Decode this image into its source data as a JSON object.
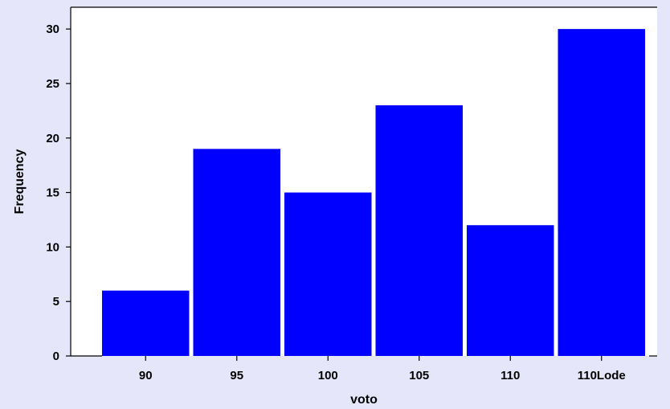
{
  "chart_data": {
    "type": "bar",
    "categories": [
      "90",
      "95",
      "100",
      "105",
      "110",
      "110Lode"
    ],
    "values": [
      6,
      19,
      15,
      23,
      12,
      30
    ],
    "xlabel": "voto",
    "ylabel": "Frequency",
    "ylim": [
      0,
      32
    ],
    "yticks": [
      0,
      5,
      10,
      15,
      20,
      25,
      30
    ],
    "grid": false,
    "bar_color": "#0000ff",
    "plot_background": "#ffffff",
    "page_background": "#e6e6fa"
  }
}
